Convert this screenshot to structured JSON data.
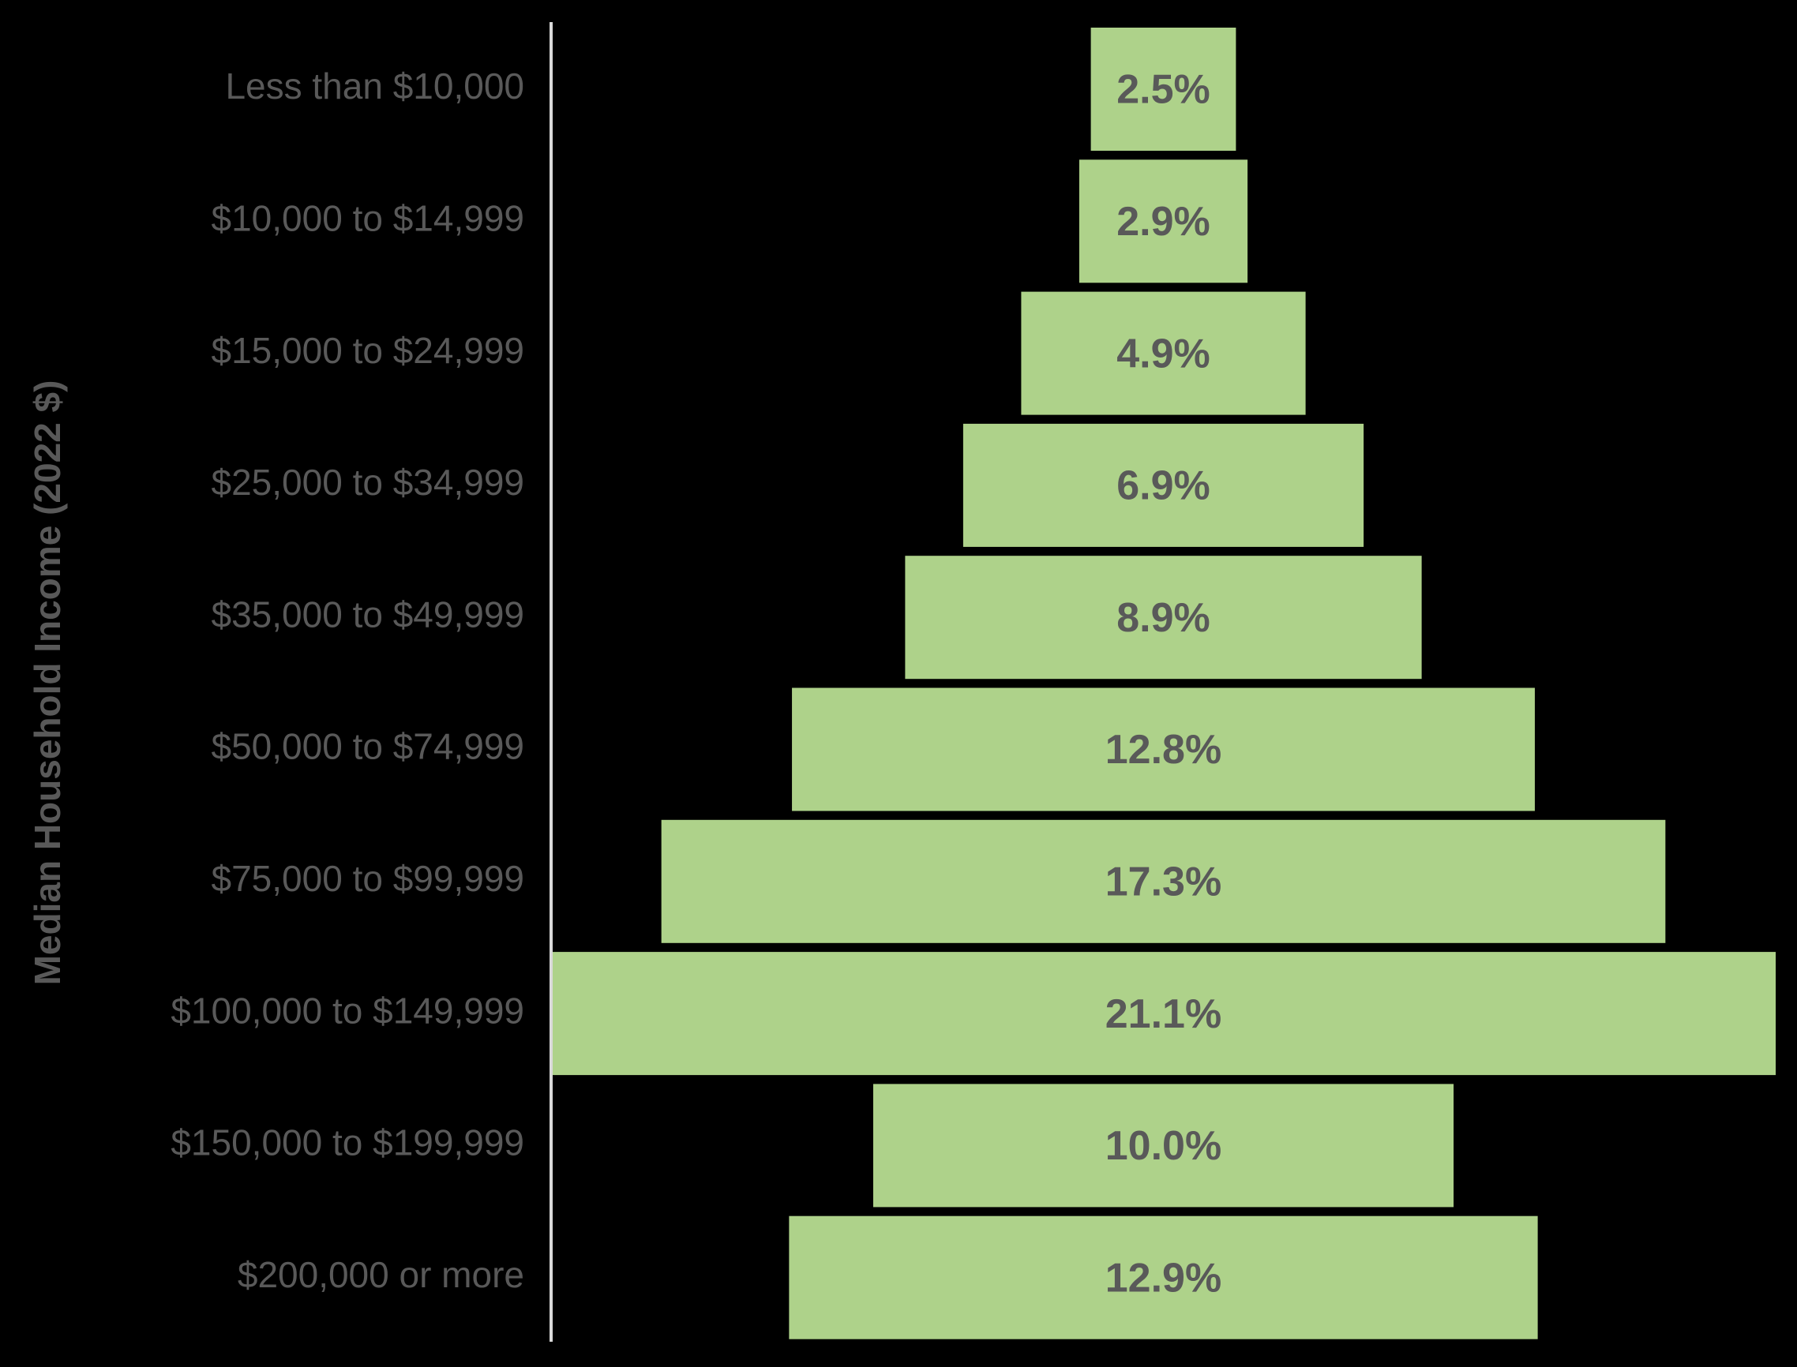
{
  "chart_data": {
    "type": "bar",
    "orientation": "horizontal-centered",
    "title": "",
    "ylabel": "Median Household Income (2022 $)",
    "xlabel": "",
    "categories": [
      "Less than $10,000",
      "$10,000 to $14,999",
      "$15,000 to $24,999",
      "$25,000 to $34,999",
      "$35,000 to $49,999",
      "$50,000 to $74,999",
      "$75,000 to $99,999",
      "$100,000 to $149,999",
      "$150,000 to $199,999",
      "$200,000 or more"
    ],
    "values": [
      2.5,
      2.9,
      4.9,
      6.9,
      8.9,
      12.8,
      17.3,
      21.1,
      10.0,
      12.9
    ],
    "data_labels": [
      "2.5%",
      "2.9%",
      "4.9%",
      "6.9%",
      "8.9%",
      "12.8%",
      "17.3%",
      "21.1%",
      "10.0%",
      "12.9%"
    ],
    "xlim": [
      0,
      21.1
    ],
    "grid": false,
    "legend": "none",
    "colors": {
      "background": "#000000",
      "bar": "#AED28A",
      "text": "#595959",
      "axis_line": "#D9D9D9"
    }
  }
}
